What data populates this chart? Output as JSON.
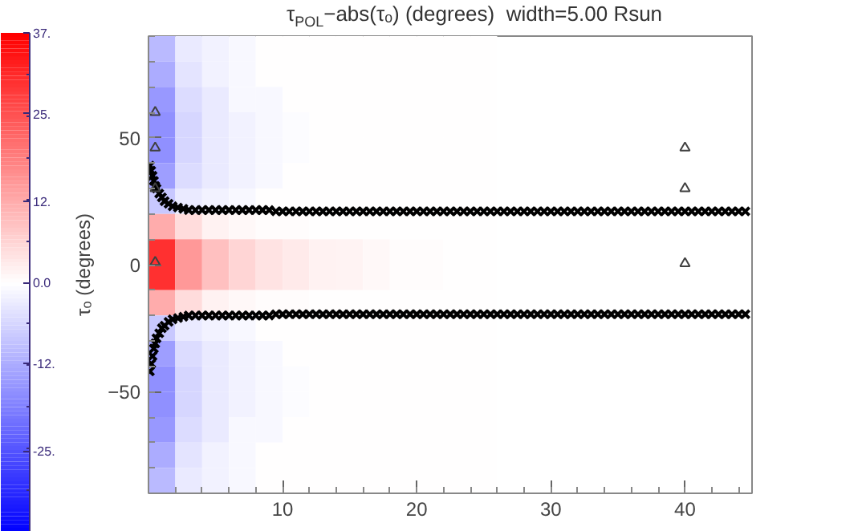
{
  "chart_data": {
    "type": "heatmap",
    "title": "τ$_{POL}$−abs(τₒ) (degrees)   width=5.00 Rsun",
    "ylabel": "τₒ (degrees)",
    "xlim": [
      0,
      45
    ],
    "ylim": [
      -90,
      90
    ],
    "xticks": [
      10,
      20,
      30,
      40
    ],
    "yticks": [
      -50,
      0,
      50
    ],
    "x": [
      1,
      3,
      5,
      7,
      9,
      11,
      13,
      15,
      17,
      19,
      21,
      23,
      25
    ],
    "y": [
      85,
      75,
      65,
      55,
      45,
      35,
      25,
      15,
      5,
      -5,
      -15,
      -25,
      -35,
      -45,
      -55,
      -65,
      -75,
      -85
    ],
    "cells": [
      [
        -10,
        -3,
        -2,
        -1,
        0,
        0,
        0,
        0,
        0,
        0,
        0,
        0,
        0
      ],
      [
        -12,
        -4,
        -2,
        -1,
        0,
        0,
        0,
        0,
        0,
        0,
        0,
        0,
        0
      ],
      [
        -15,
        -5,
        -3,
        -1,
        -1,
        0,
        0,
        0,
        0,
        0,
        0,
        0,
        0
      ],
      [
        -16,
        -6,
        -3,
        -2,
        -1,
        -0.5,
        0,
        0,
        0,
        0,
        0,
        0,
        0
      ],
      [
        -16,
        -6,
        -3,
        -2,
        -1,
        -0.5,
        0,
        0,
        0,
        0,
        0,
        0,
        0
      ],
      [
        -14,
        -5,
        -3,
        -2,
        -1,
        0,
        0,
        0,
        0,
        0,
        0,
        0,
        0
      ],
      [
        -8,
        -3,
        -2,
        -1,
        0,
        0,
        0,
        0,
        0,
        0,
        0,
        0,
        0
      ],
      [
        12,
        5,
        2,
        1,
        0.5,
        0.3,
        0,
        0,
        0,
        0,
        0,
        0,
        0
      ],
      [
        30,
        15,
        9,
        6,
        4,
        3,
        2,
        1.5,
        1,
        0.5,
        0.3,
        0,
        0
      ],
      [
        30,
        15,
        9,
        6,
        4,
        3,
        2,
        1.5,
        1,
        0.5,
        0.3,
        0,
        0
      ],
      [
        12,
        5,
        2,
        1,
        0.5,
        0.3,
        0,
        0,
        0,
        0,
        0,
        0,
        0
      ],
      [
        -8,
        -3,
        -2,
        -1,
        0,
        0,
        0,
        0,
        0,
        0,
        0,
        0,
        0
      ],
      [
        -14,
        -5,
        -3,
        -2,
        -1,
        0,
        0,
        0,
        0,
        0,
        0,
        0,
        0
      ],
      [
        -16,
        -6,
        -3,
        -2,
        -1,
        -0.5,
        0,
        0,
        0,
        0,
        0,
        0,
        0
      ],
      [
        -16,
        -6,
        -3,
        -2,
        -1,
        -0.5,
        0,
        0,
        0,
        0,
        0,
        0,
        0
      ],
      [
        -15,
        -5,
        -3,
        -1,
        -1,
        0,
        0,
        0,
        0,
        0,
        0,
        0,
        0
      ],
      [
        -12,
        -4,
        -2,
        -1,
        0,
        0,
        0,
        0,
        0,
        0,
        0,
        0,
        0
      ],
      [
        -10,
        -3,
        -2,
        -1,
        0,
        0,
        0,
        0,
        0,
        0,
        0,
        0,
        0
      ]
    ],
    "clim": [
      -37,
      37
    ],
    "cticks": [
      {
        "value": 37,
        "label": "37."
      },
      {
        "value": 25,
        "label": "25."
      },
      {
        "value": 12,
        "label": "12."
      },
      {
        "value": 0,
        "label": "0.0"
      },
      {
        "value": -12,
        "label": "-12."
      },
      {
        "value": -25,
        "label": "-25."
      }
    ],
    "series": [
      {
        "type": "scatter",
        "marker": "cross",
        "color": "#000000",
        "x": [
          0.1,
          0.2,
          0.3,
          0.4,
          0.5,
          0.6,
          0.8,
          1,
          1.2,
          1.5,
          1.8,
          2.2,
          2.6,
          3,
          3.5,
          4,
          4.5,
          5,
          5.5,
          6,
          6.5,
          7,
          7.5,
          8,
          8.5,
          9,
          9.5,
          10,
          10.5,
          11,
          11.5,
          12,
          12.5,
          13,
          13.5,
          14,
          14.5,
          15,
          15.5,
          16,
          16.5,
          17,
          17.5,
          18,
          18.5,
          19,
          19.5,
          20,
          20.5,
          21,
          21.5,
          22,
          22.5,
          23,
          23.5,
          24,
          24.5,
          25,
          25.5,
          26,
          26.5,
          27,
          27.5,
          28,
          28.5,
          29,
          29.5,
          30,
          30.5,
          31,
          31.5,
          32,
          32.5,
          33,
          33.5,
          34,
          34.5,
          35,
          35.5,
          36,
          36.5,
          37,
          37.5,
          38,
          38.5,
          39,
          39.5,
          40,
          40.5,
          41,
          41.5,
          42,
          42.5,
          43,
          43.5,
          44,
          44.5
        ],
        "values": [
          39,
          37,
          35,
          33,
          31,
          30,
          28,
          26.5,
          25,
          24,
          23,
          22.5,
          22,
          21.5,
          21.5,
          21.5,
          21.5,
          21.5,
          21.5,
          21.5,
          21.5,
          21.5,
          21.5,
          21.5,
          21.5,
          21.5,
          21,
          21,
          21,
          21,
          21,
          21,
          21,
          21,
          21,
          21,
          21,
          21,
          21,
          21,
          21,
          21,
          21,
          21,
          21,
          21,
          21,
          21,
          21,
          21,
          21,
          21,
          21,
          21,
          21,
          21,
          21,
          21,
          21,
          21,
          21,
          21,
          21,
          21,
          21,
          21,
          21,
          21,
          21,
          21,
          21,
          21,
          21,
          21,
          21,
          21,
          21,
          21,
          21,
          21,
          21,
          21,
          21,
          21,
          21,
          21,
          21,
          21,
          21,
          21,
          21,
          21,
          21,
          21,
          21,
          21,
          21
        ]
      },
      {
        "type": "scatter",
        "marker": "cross",
        "color": "#000000",
        "x": [
          0.1,
          0.2,
          0.3,
          0.4,
          0.5,
          0.6,
          0.8,
          1,
          1.2,
          1.5,
          1.8,
          2.2,
          2.6,
          3,
          3.5,
          4,
          4.5,
          5,
          5.5,
          6,
          6.5,
          7,
          7.5,
          8,
          8.5,
          9,
          9.5,
          10,
          10.5,
          11,
          11.5,
          12,
          12.5,
          13,
          13.5,
          14,
          14.5,
          15,
          15.5,
          16,
          16.5,
          17,
          17.5,
          18,
          18.5,
          19,
          19.5,
          20,
          20.5,
          21,
          21.5,
          22,
          22.5,
          23,
          23.5,
          24,
          24.5,
          25,
          25.5,
          26,
          26.5,
          27,
          27.5,
          28,
          28.5,
          29,
          29.5,
          30,
          30.5,
          31,
          31.5,
          32,
          32.5,
          33,
          33.5,
          34,
          34.5,
          35,
          35.5,
          36,
          36.5,
          37,
          37.5,
          38,
          38.5,
          39,
          39.5,
          40,
          40.5,
          41,
          41.5,
          42,
          42.5,
          43,
          43.5,
          44,
          44.5
        ],
        "values": [
          -42,
          -39,
          -36,
          -33,
          -31,
          -29,
          -27,
          -25,
          -24,
          -22.5,
          -21.5,
          -21,
          -20.5,
          -20,
          -20,
          -20,
          -20,
          -20,
          -20,
          -20,
          -20,
          -20,
          -20,
          -20,
          -20,
          -20,
          -19.5,
          -19.5,
          -19.5,
          -19.5,
          -19.5,
          -19.5,
          -19.5,
          -19.5,
          -19.5,
          -19.5,
          -19.5,
          -19.5,
          -19.5,
          -19.5,
          -19.5,
          -19.5,
          -19.5,
          -19.5,
          -19.5,
          -19.5,
          -19.5,
          -19.5,
          -19.5,
          -19.5,
          -19.5,
          -19.5,
          -19.5,
          -19.5,
          -19.5,
          -19.5,
          -19.5,
          -19.5,
          -19.5,
          -19.5,
          -19.5,
          -19.5,
          -19.5,
          -19.5,
          -19.5,
          -19.5,
          -19.5,
          -19.5,
          -19.5,
          -19.5,
          -19.5,
          -19.5,
          -19.5,
          -19.5,
          -19.5,
          -19.5,
          -19.5,
          -19.5,
          -19.5,
          -19.5,
          -19.5,
          -19.5,
          -19.5,
          -19.5,
          -19.5,
          -19.5,
          -19.5,
          -19.5,
          -19.5,
          -19.5,
          -19.5,
          -19.5,
          -19.5,
          -19.5,
          -19.5,
          -19.5,
          -19.5
        ]
      },
      {
        "type": "scatter",
        "marker": "triangle",
        "color": "#404040",
        "x": [
          0.5,
          0.5,
          0.5,
          0.5,
          40,
          40,
          40
        ],
        "values": [
          60,
          46,
          30,
          1,
          46,
          30,
          0.5
        ]
      }
    ]
  }
}
